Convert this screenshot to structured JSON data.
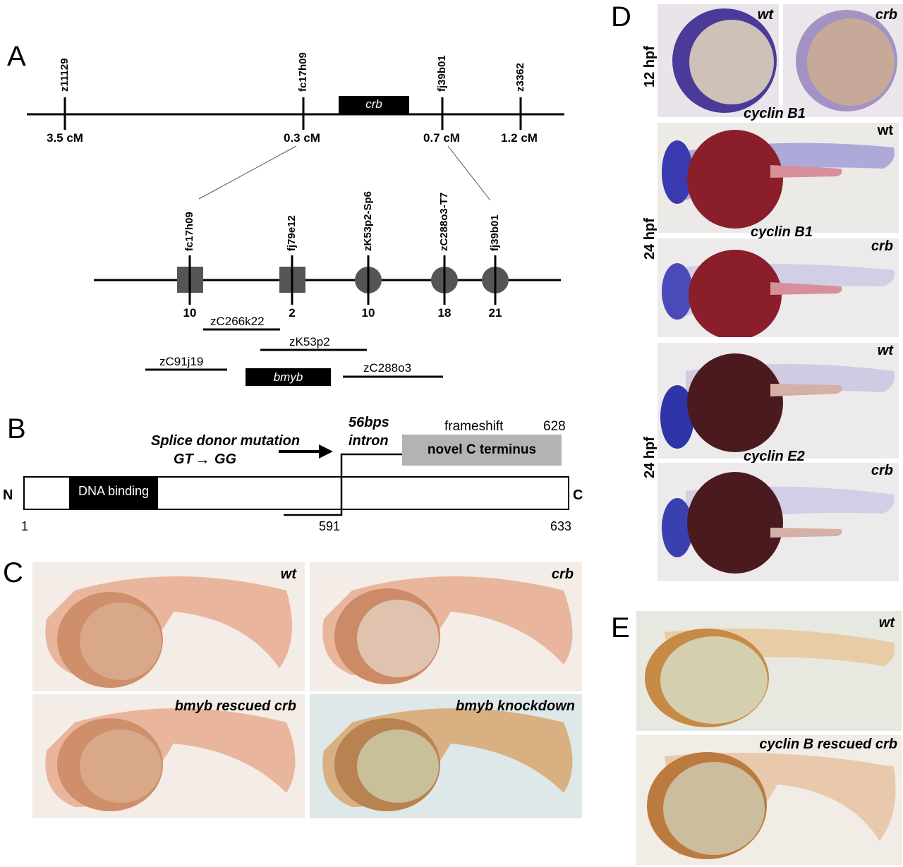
{
  "panels": {
    "A": "A",
    "B": "B",
    "C": "C",
    "D": "D",
    "E": "E"
  },
  "panelA": {
    "top_markers": [
      {
        "name": "z11129",
        "dist": "3.5 cM"
      },
      {
        "name": "fc17h09",
        "dist": "0.3 cM"
      },
      {
        "name": "fj39b01",
        "dist": "0.7 cM"
      },
      {
        "name": "z3362",
        "dist": "1.2 cM"
      }
    ],
    "gene": "crb",
    "bottom_markers": [
      {
        "name": "fc17h09",
        "count": "10",
        "shape": "square"
      },
      {
        "name": "fj79e12",
        "count": "2",
        "shape": "square"
      },
      {
        "name": "zK53p2-Sp6",
        "count": "10",
        "shape": "circle"
      },
      {
        "name": "zC288o3-T7",
        "count": "18",
        "shape": "circle"
      },
      {
        "name": "fj39b01",
        "count": "21",
        "shape": "circle"
      }
    ],
    "clones": [
      "zC266k22",
      "zK53p2",
      "zC91j19",
      "bmyb",
      "zC288o3"
    ]
  },
  "panelB": {
    "mutation_line1": "Splice donor mutation",
    "mutation_gt": "GT",
    "mutation_gg": "GG",
    "intron_line1": "56bps",
    "intron_line2": "intron",
    "frameshift": "frameshift",
    "pos_628": "628",
    "novel_c": "novel C terminus",
    "n_term": "N",
    "c_term": "C",
    "dna_binding": "DNA binding",
    "pos_1": "1",
    "pos_591": "591",
    "pos_633": "633"
  },
  "panelC": {
    "wt": "wt",
    "crb": "crb",
    "rescued": "bmyb rescued crb",
    "knockdown": "bmyb knockdown"
  },
  "panelD": {
    "hpf12": "12 hpf",
    "hpf24a": "24 hpf",
    "hpf24b": "24 hpf",
    "wt1": "wt",
    "crb1": "crb",
    "cyclinB1_a": "cyclin B1",
    "wt2": "wt",
    "cyclinB1_b": "cyclin B1",
    "crb2": "crb",
    "wt3": "wt",
    "cyclinE2": "cyclin E2",
    "crb3": "crb"
  },
  "panelE": {
    "wt": "wt",
    "rescued": "cyclin B rescued crb"
  }
}
